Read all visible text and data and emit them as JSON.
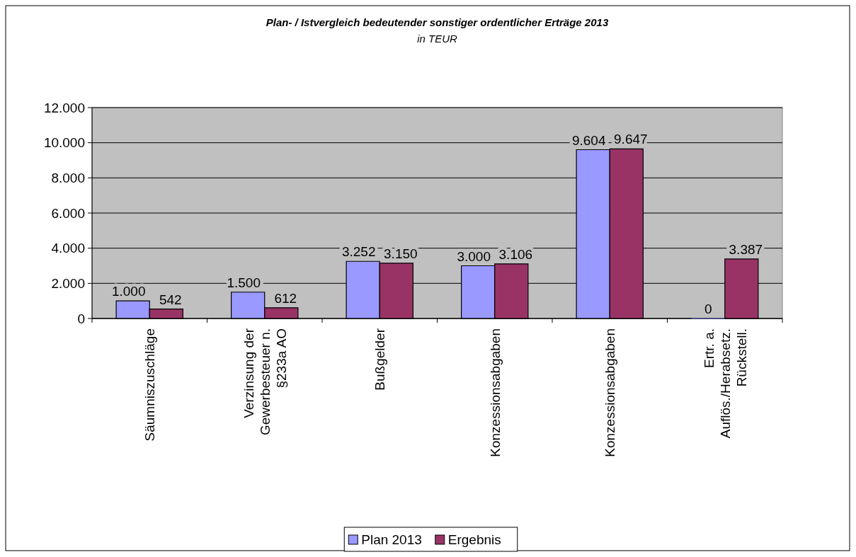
{
  "chart_data": {
    "type": "bar",
    "title": "Plan- / Istvergleich bedeutender sonstiger ordentlicher Erträge 2013",
    "subtitle": "in TEUR",
    "categories": [
      "Säumniszuschläge",
      "Verzinsung der\nGewerbesteuer n.\n§233a AO",
      "Bußgelder",
      "Konzessionsabgaben",
      "Konzessionsabgaben",
      "Ertr. a.\nAuflös./Herabsetz.\nRückstell."
    ],
    "series": [
      {
        "name": "Plan 2013",
        "color": "#9999ff",
        "values": [
          1000,
          1500,
          3252,
          3000,
          9604,
          0
        ],
        "value_labels": [
          "1.000",
          "1.500",
          "3.252",
          "3.000",
          "9.604",
          "0"
        ]
      },
      {
        "name": "Ergebnis",
        "color": "#993366",
        "values": [
          542,
          612,
          3150,
          3106,
          9647,
          3387
        ],
        "value_labels": [
          "542",
          "612",
          "3.150",
          "3.106",
          "9.647",
          "3.387"
        ]
      }
    ],
    "ylim": [
      0,
      12000
    ],
    "yticks": [
      {
        "value": 0,
        "label": "0"
      },
      {
        "value": 2000,
        "label": "2.000"
      },
      {
        "value": 4000,
        "label": "4.000"
      },
      {
        "value": 6000,
        "label": "6.000"
      },
      {
        "value": 8000,
        "label": "8.000"
      },
      {
        "value": 10000,
        "label": "10.000"
      },
      {
        "value": 12000,
        "label": "12.000"
      }
    ],
    "grid": "y",
    "legend": "bottom"
  }
}
